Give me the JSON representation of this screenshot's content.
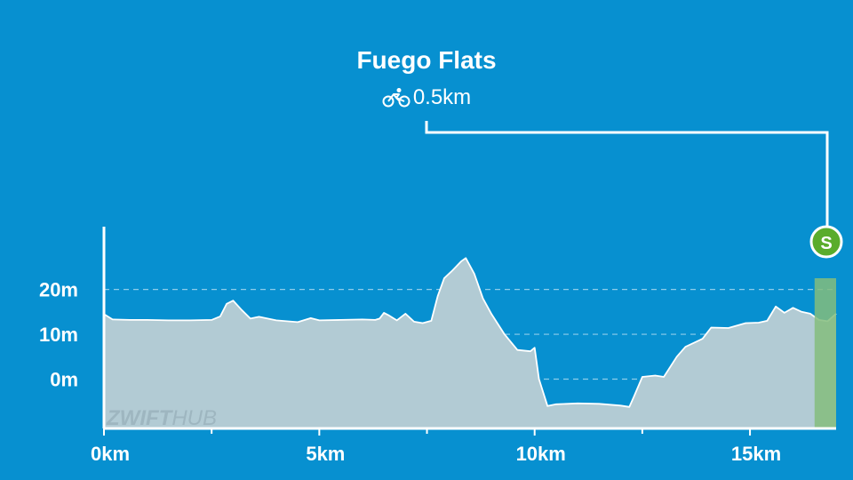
{
  "segment": {
    "title": "Fuego Flats",
    "distance": "0.5km",
    "icon": "bike-icon"
  },
  "watermark": {
    "left": "ZWIFT",
    "right": "HUB"
  },
  "marker": {
    "label": "S",
    "color": "#5aac2c"
  },
  "colors": {
    "background": "#0790d0",
    "area_fill": "#b2cbd4",
    "segment_fill": "#84bd7c"
  },
  "chart_data": {
    "type": "area",
    "title": "Fuego Flats",
    "xlabel": "",
    "ylabel": "",
    "xlim": [
      0,
      17
    ],
    "ylim": [
      -11,
      34
    ],
    "grid": "horizontal dashed at y-ticks",
    "y_ticks": [
      {
        "value": 0,
        "label": "0m"
      },
      {
        "value": 10,
        "label": "10m"
      },
      {
        "value": 20,
        "label": "20m"
      }
    ],
    "x_ticks": [
      {
        "value": 0,
        "label": "0km"
      },
      {
        "value": 5,
        "label": "5km"
      },
      {
        "value": 10,
        "label": "10km"
      },
      {
        "value": 15,
        "label": "15km"
      }
    ],
    "minor_x_ticks": [
      2.5,
      7.5,
      12.5
    ],
    "highlight_segment": {
      "start_km": 16.5,
      "end_km": 17,
      "label": "Fuego Flats"
    },
    "series": [
      {
        "x": [
          0.0,
          0.2,
          0.6,
          1.0,
          1.5,
          2.0,
          2.5,
          2.7,
          2.85,
          3.0,
          3.2,
          3.4,
          3.6,
          4.0,
          4.5,
          4.8,
          5.0,
          5.5,
          6.0,
          6.3,
          6.4,
          6.5,
          6.6,
          6.8,
          7.0,
          7.2,
          7.4,
          7.6,
          7.75,
          7.9,
          8.1,
          8.3,
          8.4,
          8.6,
          8.8,
          9.0,
          9.3,
          9.6,
          9.9,
          10.0,
          10.1,
          10.3,
          10.5,
          11.0,
          11.5,
          12.0,
          12.2,
          12.3,
          12.5,
          12.8,
          13.0,
          13.3,
          13.5,
          13.9,
          14.1,
          14.5,
          14.9,
          15.2,
          15.4,
          15.6,
          15.8,
          16.0,
          16.2,
          16.4,
          16.6,
          16.8,
          17.0
        ],
        "y": [
          14.5,
          13.3,
          13.2,
          13.2,
          13.1,
          13.1,
          13.2,
          14.0,
          16.8,
          17.5,
          15.4,
          13.5,
          13.9,
          13.1,
          12.7,
          13.6,
          13.1,
          13.2,
          13.3,
          13.2,
          13.5,
          14.8,
          14.3,
          13.1,
          14.6,
          12.8,
          12.5,
          13.0,
          18.5,
          22.5,
          24.3,
          26.3,
          27.0,
          23.5,
          18.0,
          14.5,
          10.0,
          6.5,
          6.2,
          7.0,
          0.0,
          -6.0,
          -5.6,
          -5.4,
          -5.5,
          -5.9,
          -6.2,
          -4.0,
          0.5,
          0.8,
          0.5,
          5.0,
          7.2,
          9.0,
          11.5,
          11.4,
          12.5,
          12.6,
          13.0,
          16.2,
          14.8,
          15.9,
          15.0,
          14.6,
          13.2,
          12.9,
          14.6
        ]
      }
    ]
  }
}
